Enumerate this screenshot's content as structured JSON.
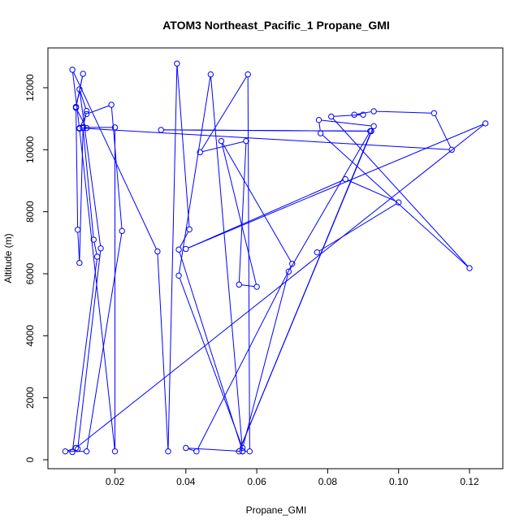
{
  "chart_data": {
    "type": "line",
    "title": "ATOM3 Northeast_Pacific_1 Propane_GMI",
    "xlabel": "Propane_GMI",
    "ylabel": "Altitude (m)",
    "xlim": [
      0.0,
      0.13
    ],
    "ylim": [
      0,
      13000
    ],
    "xticks": [
      0.02,
      0.04,
      0.06,
      0.08,
      0.1,
      0.12
    ],
    "xtick_labels": [
      "0.02",
      "0.04",
      "0.06",
      "0.08",
      "0.10",
      "0.12"
    ],
    "yticks": [
      0,
      2000,
      4000,
      6000,
      8000,
      10000,
      12000
    ],
    "ytick_labels": [
      "0",
      "2000",
      "4000",
      "6000",
      "8000",
      "10000",
      "12000"
    ],
    "grid": false,
    "series": [
      {
        "color": "#0000ff",
        "marker": "open-circle",
        "x": [
          0.012,
          0.009,
          0.011,
          0.009,
          0.009,
          0.0095,
          0.01,
          0.011,
          0.014,
          0.015,
          0.008,
          0.0095,
          0.016,
          0.01,
          0.012,
          0.011,
          0.02,
          0.02,
          0.01,
          0.008,
          0.032,
          0.035,
          0.0375,
          0.041,
          0.038,
          0.056,
          0.04,
          0.043,
          0.07,
          0.05,
          0.06,
          0.055,
          0.057,
          0.044,
          0.0575,
          0.058,
          0.056,
          0.047,
          0.038,
          0.056,
          0.069,
          0.092,
          0.033,
          0.0923,
          0.055,
          0.093,
          0.0775,
          0.078,
          0.12,
          0.081,
          0.09,
          0.0875,
          0.093,
          0.11,
          0.115,
          0.01,
          0.012,
          0.019,
          0.022,
          0.012,
          0.006,
          0.009,
          0.1245,
          0.04,
          0.085,
          0.1,
          0.077
        ],
        "y": [
          10700,
          11350,
          12450,
          11380,
          11380,
          7420,
          6350,
          10700,
          7100,
          6550,
          250,
          350,
          6820,
          11950,
          11250,
          10720,
          10720,
          270,
          10680,
          12580,
          6720,
          270,
          12780,
          7430,
          6780,
          270,
          380,
          270,
          6320,
          10280,
          5580,
          5650,
          10280,
          9920,
          12430,
          270,
          270,
          12430,
          5940,
          380,
          6070,
          10600,
          10640,
          10600,
          270,
          10760,
          10960,
          10530,
          6180,
          11070,
          11130,
          11130,
          11240,
          11180,
          10000,
          10700,
          11150,
          11450,
          7380,
          270,
          270,
          380,
          10850,
          6800,
          9050,
          8300,
          6690
        ]
      }
    ]
  }
}
